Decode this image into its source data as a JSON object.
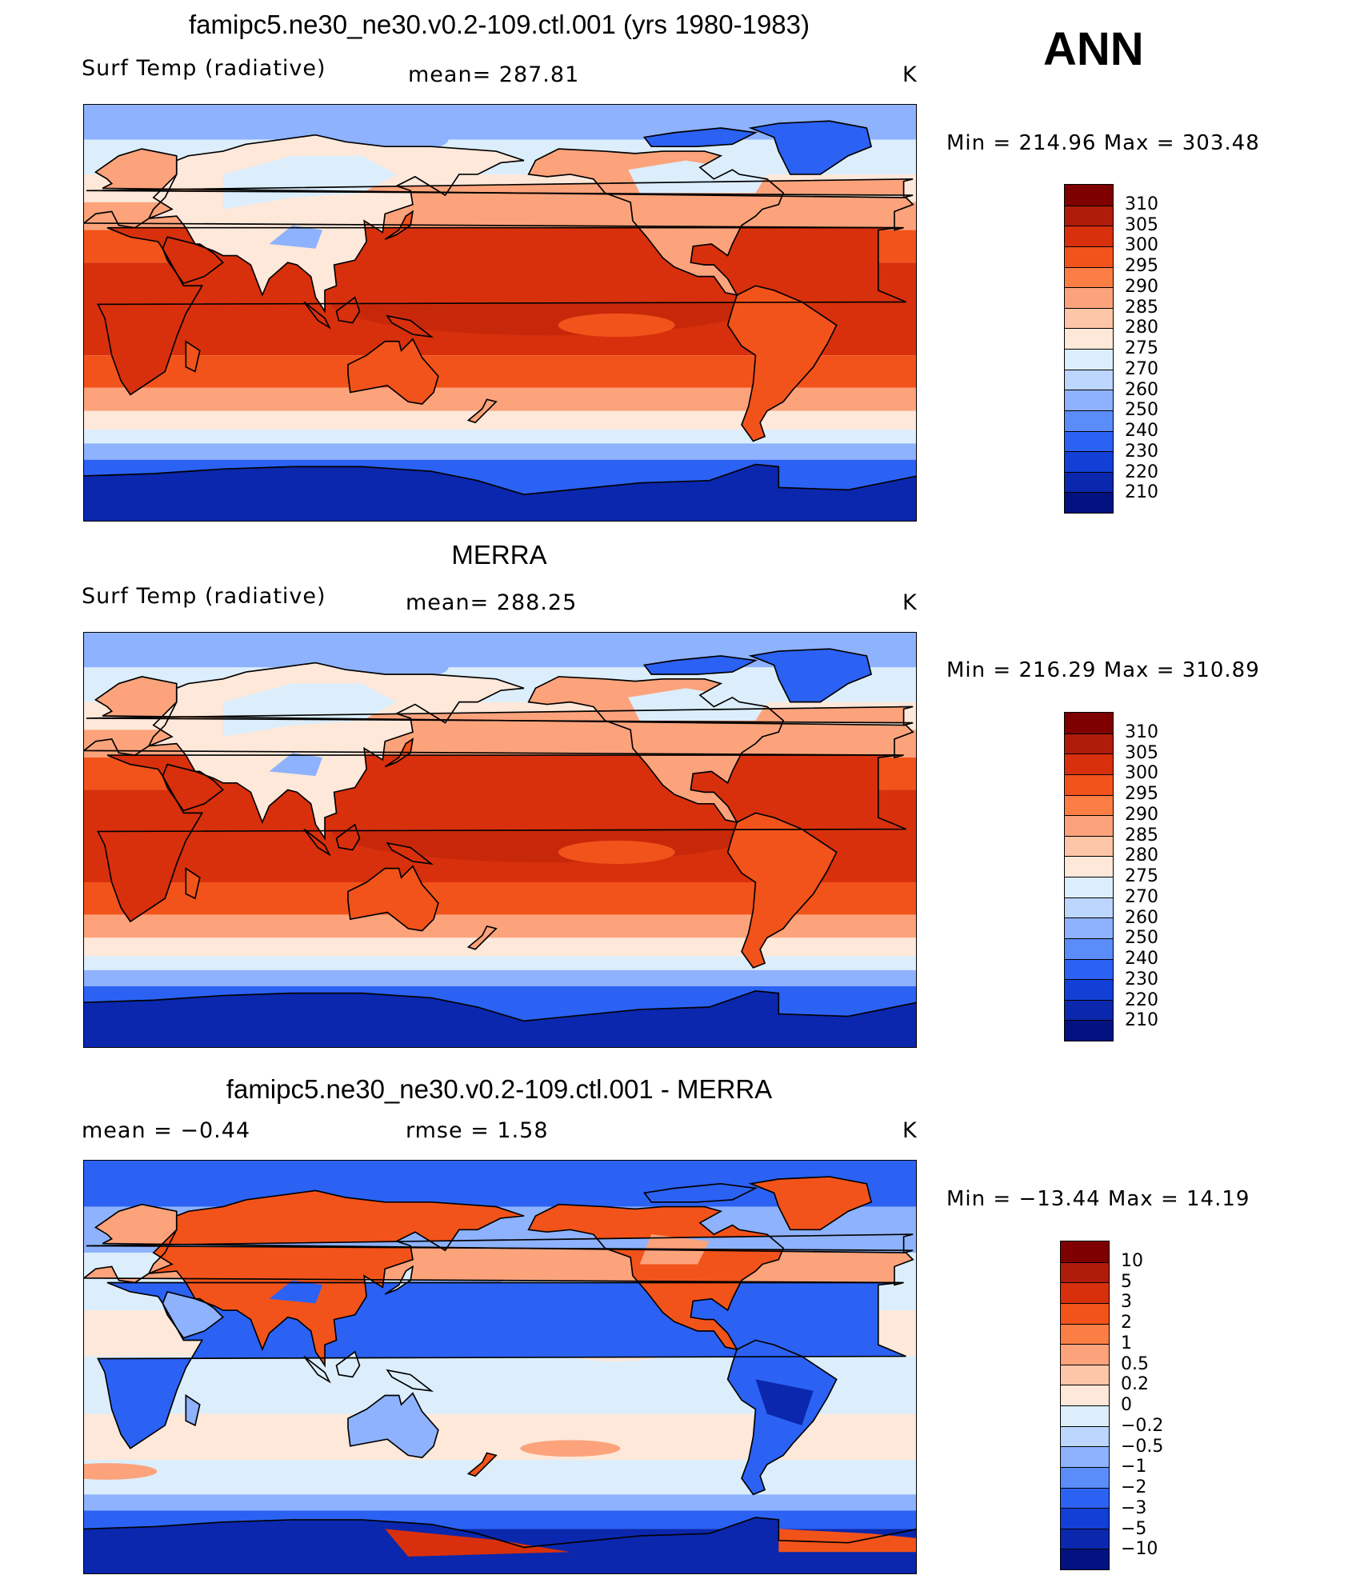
{
  "season": "ANN",
  "panels": [
    {
      "id": "model",
      "title": "famipc5.ne30_ne30.v0.2-109.ctl.001 (yrs 1980-1983)",
      "left_label": "Surf Temp (radiative)",
      "center_label": "mean= 287.81",
      "units": "K",
      "minmax": "Min = 214.96 Max = 303.48",
      "colorbar": {
        "colors": [
          "#7f0000",
          "#b01c0a",
          "#d8300c",
          "#f2531a",
          "#fb7e45",
          "#fca37c",
          "#fdc6a8",
          "#fde8da",
          "#dceefc",
          "#bcd6fd",
          "#8eb2fd",
          "#5a8cfa",
          "#2b62f4",
          "#1240d6",
          "#0a27ad",
          "#021281"
        ],
        "ticks": [
          "310",
          "305",
          "300",
          "295",
          "290",
          "285",
          "280",
          "275",
          "270",
          "260",
          "250",
          "240",
          "230",
          "220",
          "210"
        ]
      }
    },
    {
      "id": "obs",
      "title": "MERRA",
      "left_label": "Surf Temp (radiative)",
      "center_label": "mean= 288.25",
      "units": "K",
      "minmax": "Min = 216.29 Max = 310.89",
      "colorbar": {
        "colors": [
          "#7f0000",
          "#b01c0a",
          "#d8300c",
          "#f2531a",
          "#fb7e45",
          "#fca37c",
          "#fdc6a8",
          "#fde8da",
          "#dceefc",
          "#bcd6fd",
          "#8eb2fd",
          "#5a8cfa",
          "#2b62f4",
          "#1240d6",
          "#0a27ad",
          "#021281"
        ],
        "ticks": [
          "310",
          "305",
          "300",
          "295",
          "290",
          "285",
          "280",
          "275",
          "270",
          "260",
          "250",
          "240",
          "230",
          "220",
          "210"
        ]
      }
    },
    {
      "id": "diff",
      "title": "famipc5.ne30_ne30.v0.2-109.ctl.001 - MERRA",
      "left_label": "mean =    −0.44",
      "center_label": "rmse =    1.58",
      "units": "K",
      "minmax": "Min = −13.44 Max =  14.19",
      "colorbar": {
        "colors": [
          "#7f0000",
          "#b01c0a",
          "#d8300c",
          "#f2531a",
          "#fb7e45",
          "#fca37c",
          "#fdc6a8",
          "#fde8da",
          "#dceefc",
          "#bcd6fd",
          "#8eb2fd",
          "#5a8cfa",
          "#2b62f4",
          "#1240d6",
          "#0a27ad",
          "#021281"
        ],
        "ticks": [
          "10",
          "5",
          "3",
          "2",
          "1",
          "0.5",
          "0.2",
          "0",
          "−0.2",
          "−0.5",
          "−1",
          "−2",
          "−3",
          "−5",
          "−10"
        ]
      }
    }
  ],
  "colors": {
    "hot": "#d8300c",
    "warm": "#f2531a",
    "mild": "#fca37c",
    "neutral_warm": "#fde8da",
    "neutral_cool": "#dceefc",
    "cool": "#8eb2fd",
    "cold": "#2b62f4",
    "very_cold": "#0a27ad",
    "coast": "#000000"
  }
}
